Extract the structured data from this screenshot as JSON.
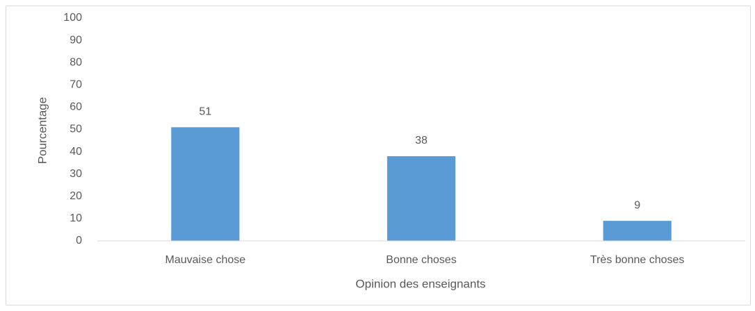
{
  "chart_data": {
    "type": "bar",
    "xlabel": "Opinion des enseignants",
    "ylabel": "Pourcentage",
    "categories": [
      "Mauvaise chose",
      "Bonne choses",
      "Très bonne choses"
    ],
    "values": [
      51,
      38,
      9
    ],
    "color": "#5b9bd5",
    "ylim": [
      0,
      100
    ],
    "yticks": [
      0,
      10,
      20,
      30,
      40,
      50,
      60,
      70,
      80,
      90,
      100
    ],
    "grid": false
  }
}
